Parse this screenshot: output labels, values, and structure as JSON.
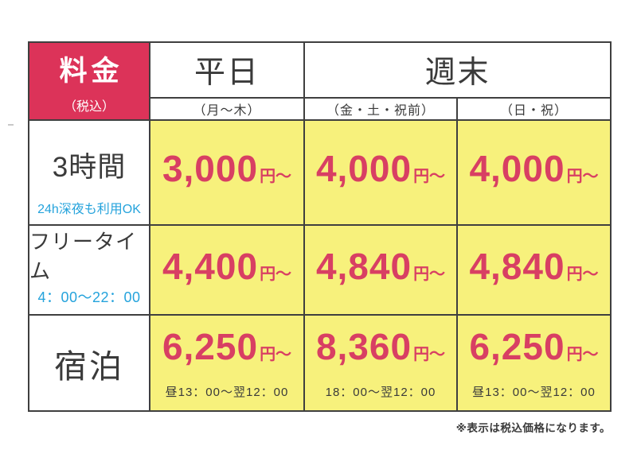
{
  "header": {
    "corner_title": "料金",
    "corner_subtitle": "（税込）",
    "weekday_label": "平日",
    "weekend_label": "週末",
    "sub_labels": [
      "（月～木）",
      "（金・土・祝前）",
      "（日・祝）"
    ]
  },
  "rows": [
    {
      "label": "3時間",
      "note": "24h深夜も利用OK",
      "prices": [
        {
          "amount": "3,000",
          "unit": "円～"
        },
        {
          "amount": "4,000",
          "unit": "円～"
        },
        {
          "amount": "4,000",
          "unit": "円～"
        }
      ]
    },
    {
      "label": "フリータイム",
      "note": "4：00～22：00",
      "prices": [
        {
          "amount": "4,400",
          "unit": "円～"
        },
        {
          "amount": "4,840",
          "unit": "円～"
        },
        {
          "amount": "4,840",
          "unit": "円～"
        }
      ]
    },
    {
      "label": "宿泊",
      "note": "",
      "prices": [
        {
          "amount": "6,250",
          "unit": "円～",
          "time": "昼13：00～翌12：00"
        },
        {
          "amount": "8,360",
          "unit": "円～",
          "time": "18：00～翌12：00"
        },
        {
          "amount": "6,250",
          "unit": "円～",
          "time": "昼13：00～翌12：00"
        }
      ]
    }
  ],
  "footnote": "※表示は税込価格になります。",
  "colors": {
    "corner_bg": "#dc3359",
    "price_red": "#d83f63",
    "cell_bg": "#f7f17c",
    "info_blue": "#25a3dc",
    "text_dark": "#3a3a3a",
    "border": "#3f3f3f"
  }
}
